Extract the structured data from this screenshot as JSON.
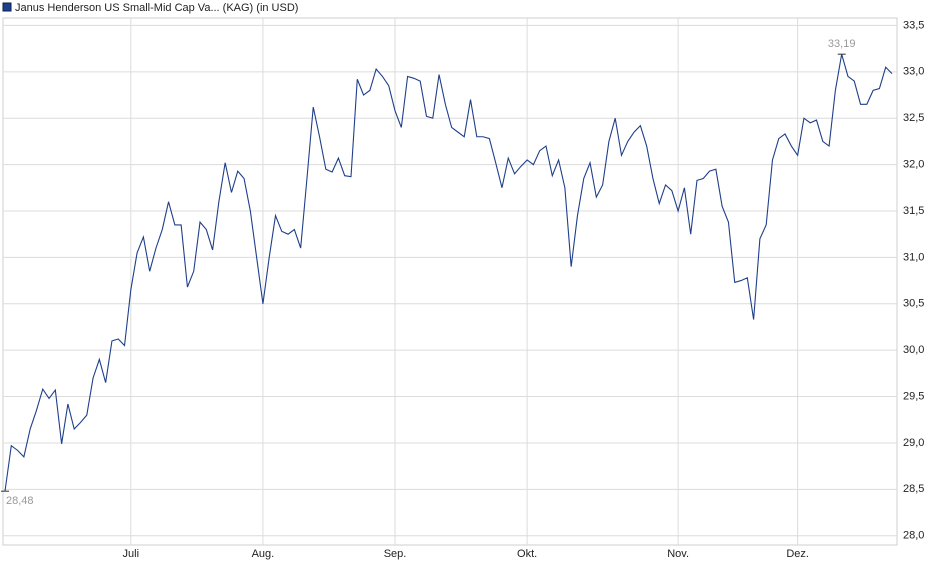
{
  "chart_data": {
    "type": "line",
    "title": "Janus Henderson US Small-Mid Cap Va... (KAG) (in USD)",
    "series": [
      {
        "name": "Janus Henderson US Small-Mid Cap Va... (KAG) (in USD)",
        "color": "#1f3f8a",
        "values": [
          28.48,
          28.97,
          28.92,
          28.85,
          29.15,
          29.35,
          29.58,
          29.48,
          29.57,
          28.99,
          29.42,
          29.15,
          29.22,
          29.3,
          29.7,
          29.9,
          29.65,
          30.1,
          30.12,
          30.05,
          30.65,
          31.05,
          31.22,
          30.85,
          31.1,
          31.3,
          31.6,
          31.35,
          31.35,
          30.68,
          30.85,
          31.38,
          31.3,
          31.08,
          31.6,
          32.02,
          31.7,
          31.93,
          31.85,
          31.5,
          31.0,
          30.5,
          31.0,
          31.45,
          31.28,
          31.25,
          31.3,
          31.1,
          31.85,
          32.62,
          32.3,
          31.95,
          31.92,
          32.07,
          31.88,
          31.87,
          32.92,
          32.75,
          32.8,
          33.03,
          32.95,
          32.85,
          32.58,
          32.4,
          32.95,
          32.93,
          32.9,
          32.52,
          32.5,
          32.97,
          32.65,
          32.4,
          32.35,
          32.3,
          32.7,
          32.3,
          32.3,
          32.28,
          32.02,
          31.75,
          32.07,
          31.9,
          31.98,
          32.05,
          32.0,
          32.15,
          32.2,
          31.88,
          32.05,
          31.75,
          30.9,
          31.45,
          31.85,
          32.02,
          31.65,
          31.78,
          32.25,
          32.5,
          32.1,
          32.25,
          32.35,
          32.42,
          32.2,
          31.85,
          31.58,
          31.78,
          31.72,
          31.5,
          31.75,
          31.25,
          31.83,
          31.85,
          31.93,
          31.95,
          31.55,
          31.38,
          30.73,
          30.75,
          30.78,
          30.33,
          31.2,
          31.35,
          32.05,
          32.28,
          32.33,
          32.2,
          32.1,
          32.5,
          32.45,
          32.48,
          32.25,
          32.2,
          32.8,
          33.19,
          32.95,
          32.9,
          32.65,
          32.65,
          32.8,
          32.82,
          33.05,
          32.98
        ]
      }
    ],
    "xlim": [
      0,
      141
    ],
    "xticks": [
      {
        "value": 20,
        "label": "Juli"
      },
      {
        "value": 41,
        "label": "Aug."
      },
      {
        "value": 62,
        "label": "Sep."
      },
      {
        "value": 83,
        "label": "Okt."
      },
      {
        "value": 107,
        "label": "Nov."
      },
      {
        "value": 126,
        "label": "Dez."
      }
    ],
    "ylim": [
      27.9,
      33.58
    ],
    "yticks": [
      {
        "value": 28,
        "label": "28,0"
      },
      {
        "value": 28.5,
        "label": "28,5"
      },
      {
        "value": 29,
        "label": "29,0"
      },
      {
        "value": 29.5,
        "label": "29,5"
      },
      {
        "value": 30,
        "label": "30,0"
      },
      {
        "value": 30.5,
        "label": "30,5"
      },
      {
        "value": 31,
        "label": "31,0"
      },
      {
        "value": 31.5,
        "label": "31,5"
      },
      {
        "value": 32,
        "label": "32,0"
      },
      {
        "value": 32.5,
        "label": "32,5"
      },
      {
        "value": 33,
        "label": "33,0"
      },
      {
        "value": 33.5,
        "label": "33,5"
      }
    ],
    "annotations": [
      {
        "value": 28.48,
        "label": "28,48"
      },
      {
        "value": 33.19,
        "label": "33,19"
      }
    ],
    "grid": true
  }
}
